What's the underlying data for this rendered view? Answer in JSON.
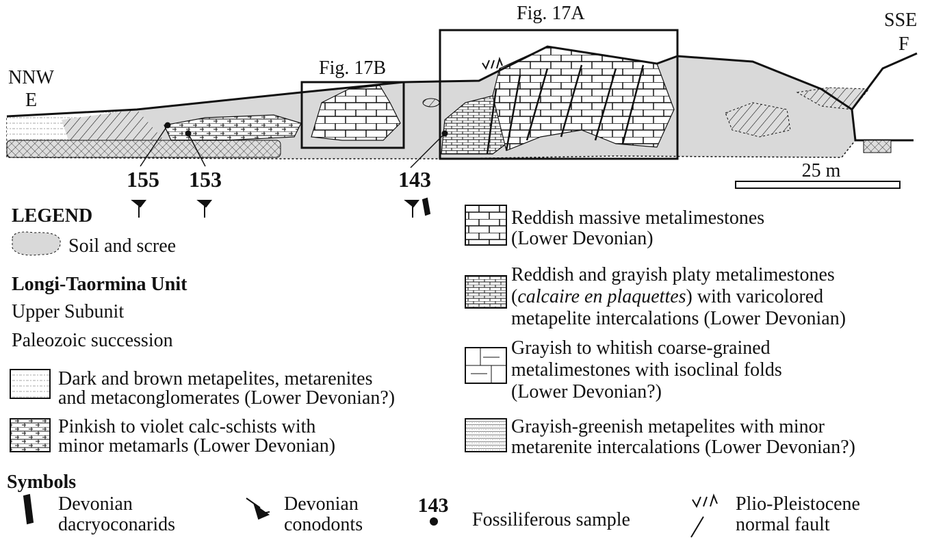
{
  "section": {
    "fig17a": "Fig. 17A",
    "fig17b": "Fig. 17B",
    "left_dir": "NNW",
    "left_point": "E",
    "right_dir": "SSE",
    "right_point": "F",
    "scale": "25 m",
    "samples": [
      "155",
      "153",
      "143"
    ]
  },
  "legend": {
    "title": "LEGEND",
    "soil": "Soil and scree",
    "unit": "Longi-Taormina Unit",
    "subunit": "Upper Subunit",
    "succession": "Paleozoic succession",
    "units": [
      {
        "lines": [
          "Dark and brown metapelites, metarenites",
          "and metaconglomerates (Lower Devonian?)"
        ]
      },
      {
        "lines": [
          "Pinkish to violet calc-schists with",
          "minor metamarls (Lower Devonian)"
        ]
      },
      {
        "lines": [
          "Reddish massive metalimestones",
          "(Lower Devonian)"
        ]
      },
      {
        "lines": [
          "Reddish and grayish platy metalimestones",
          [
            {
              "text": "("
            },
            {
              "text": "calcaire en plaquettes",
              "italic": true
            },
            {
              "text": ") with varicolored"
            }
          ],
          "metapelite intercalations (Lower Devonian)"
        ]
      },
      {
        "lines": [
          "Grayish to whitish coarse-grained",
          "metalimestones with isoclinal folds",
          "(Lower Devonian?)"
        ]
      },
      {
        "lines": [
          "Grayish-greenish metapelites with minor",
          "metarenite intercalations (Lower Devonian?)"
        ]
      }
    ]
  },
  "symbols": {
    "title": "Symbols",
    "items": [
      {
        "lines": [
          "Devonian",
          "dacryoconarids"
        ]
      },
      {
        "lines": [
          "Devonian",
          "conodonts"
        ]
      },
      {
        "sample": "143",
        "lines": [
          "Fossiliferous sample"
        ]
      },
      {
        "lines": [
          "Plio-Pleistocene",
          "normal fault"
        ]
      }
    ]
  }
}
